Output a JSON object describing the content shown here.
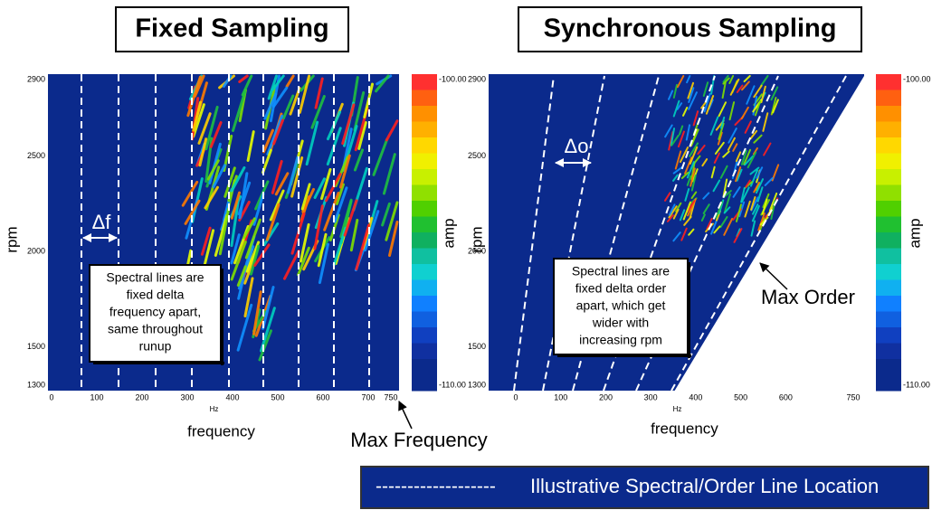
{
  "left_panel": {
    "title": "Fixed Sampling",
    "x_ticks": [
      "0",
      "100",
      "200",
      "300",
      "400",
      "500",
      "600",
      "700",
      "750"
    ],
    "x_unit": "Hz",
    "x_label": "frequency",
    "y_ticks": [
      "2900",
      "2500",
      "2000",
      "1500",
      "1300"
    ],
    "y_label": "rpm",
    "colorbar": {
      "top": "-100.00",
      "bottom": "-110.00",
      "label": "amp"
    },
    "delta_label": "Δf",
    "note": [
      "Spectral lines are",
      "fixed delta",
      "frequency apart,",
      "same throughout",
      "runup"
    ],
    "callout": "Max Frequency"
  },
  "right_panel": {
    "title": "Synchronous Sampling",
    "x_ticks": [
      "0",
      "100",
      "200",
      "300",
      "400",
      "500",
      "600",
      "750"
    ],
    "x_unit": "Hz",
    "x_label": "frequency",
    "y_ticks": [
      "2900",
      "2500",
      "2000",
      "1500",
      "1300"
    ],
    "y_label": "rpm",
    "colorbar": {
      "top": "-100.00",
      "bottom": "-110.00",
      "label": "amp"
    },
    "delta_label": "Δo",
    "note": [
      "Spectral lines are",
      "fixed delta order",
      "apart, which get",
      "wider with",
      "increasing rpm"
    ],
    "callout": "Max Order"
  },
  "legend": {
    "dashes": "-------------------",
    "text": "Illustrative Spectral/Order Line Location"
  }
}
